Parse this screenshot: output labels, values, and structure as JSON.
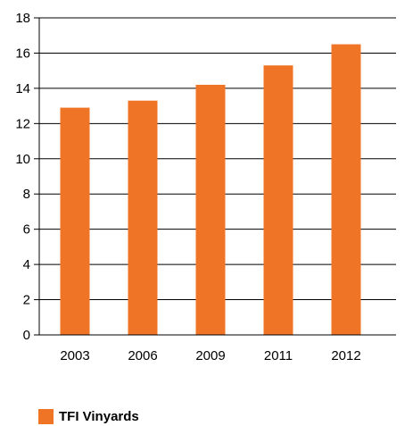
{
  "chart_data": {
    "type": "bar",
    "categories": [
      "2003",
      "2006",
      "2009",
      "2011",
      "2012"
    ],
    "series": [
      {
        "name": "TFI Vinyards",
        "values": [
          12.9,
          13.3,
          14.2,
          15.3,
          16.5
        ],
        "color": "#f07426"
      }
    ],
    "title": "",
    "xlabel": "",
    "ylabel": "",
    "ylim": [
      0,
      18
    ],
    "yticks": [
      "0",
      "2",
      "4",
      "6",
      "8",
      "10",
      "12",
      "14",
      "16",
      "18"
    ],
    "grid": true,
    "legend_position": "bottom-left"
  }
}
